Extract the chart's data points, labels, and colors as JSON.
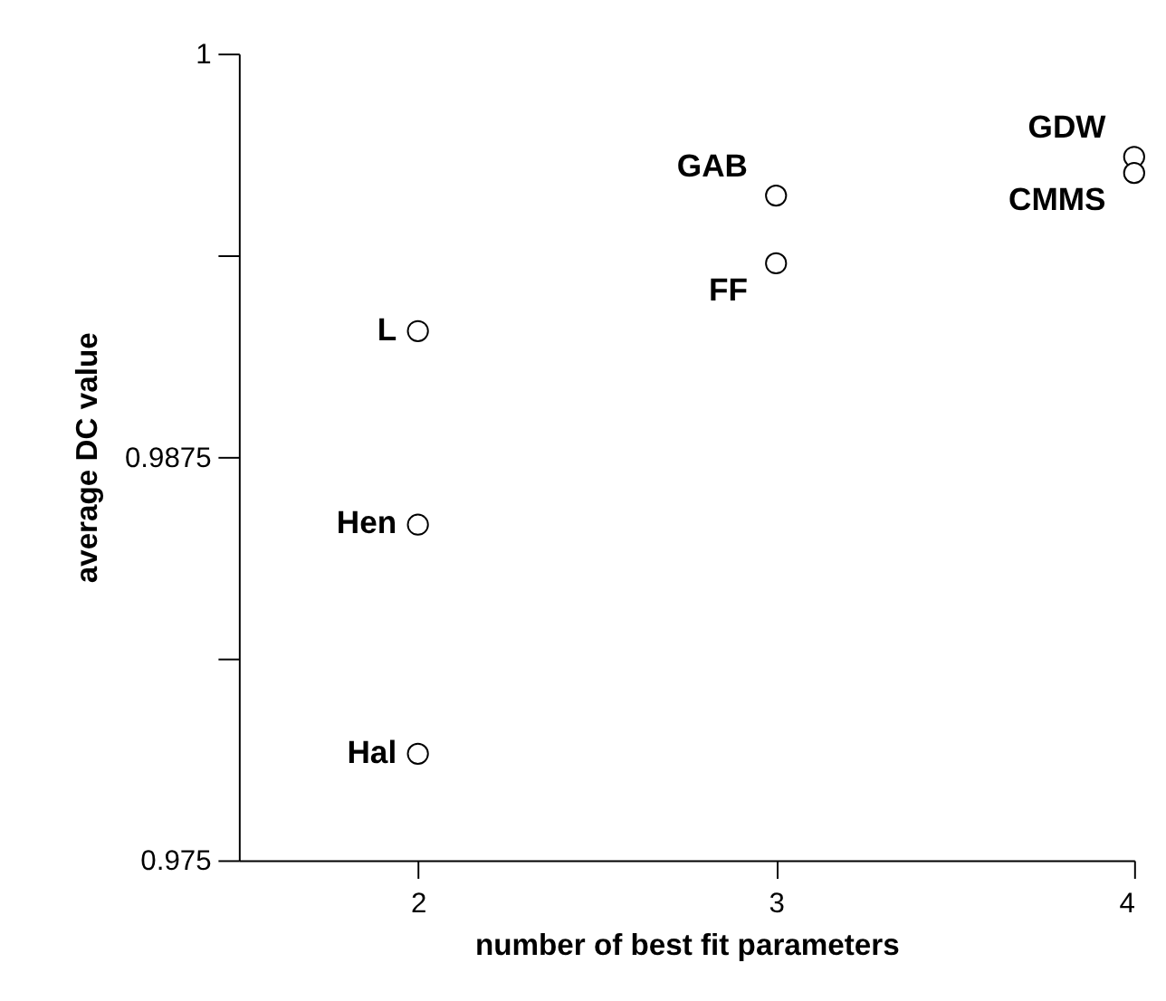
{
  "chart_data": {
    "type": "scatter",
    "xlabel": "number of best fit parameters",
    "ylabel": "average DC value",
    "xlim": [
      1.5,
      4
    ],
    "xticks": [
      2,
      3,
      4
    ],
    "ylim": [
      0.975,
      1
    ],
    "yticks": [
      0.975,
      {
        "value": 0.98125,
        "label": null
      },
      0.9875,
      {
        "value": 0.99375,
        "label": null
      },
      1
    ],
    "series": [
      {
        "color": "#000000",
        "x": [
          2,
          2,
          2,
          3,
          3,
          4,
          4
        ],
        "values": [
          0.9914,
          0.9854,
          0.9783,
          0.9956,
          0.9935,
          0.9968,
          0.9963
        ]
      }
    ],
    "marker": "circle",
    "grid": false,
    "annotations": [
      {
        "text": "L",
        "x": 2,
        "y": 0.9914
      },
      {
        "text": "Hen",
        "x": 2,
        "y": 0.9854
      },
      {
        "text": "Hal",
        "x": 2,
        "y": 0.9783
      },
      {
        "text": "GAB",
        "x": 3,
        "y": 0.9956
      },
      {
        "text": "FF",
        "x": 3,
        "y": 0.9935
      },
      {
        "text": "GDW",
        "x": 4,
        "y": 0.9968
      },
      {
        "text": "CMMS",
        "x": 4,
        "y": 0.9963
      }
    ]
  }
}
